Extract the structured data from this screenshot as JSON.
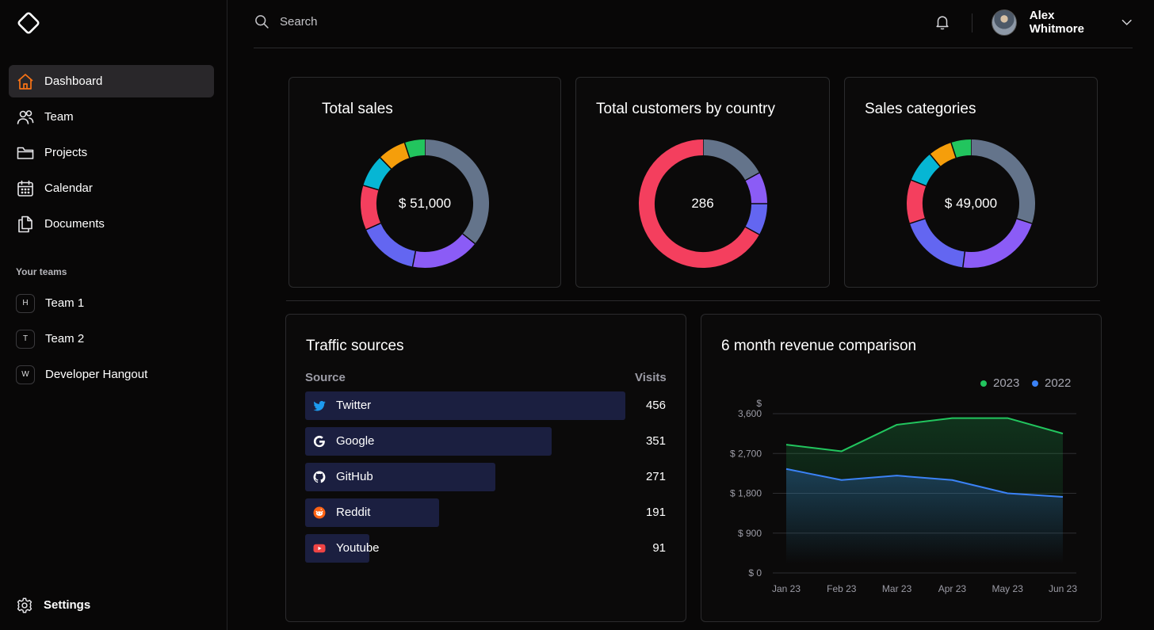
{
  "sidebar": {
    "nav": [
      {
        "label": "Dashboard",
        "icon": "home-icon",
        "active": true
      },
      {
        "label": "Team",
        "icon": "users-icon"
      },
      {
        "label": "Projects",
        "icon": "folder-icon"
      },
      {
        "label": "Calendar",
        "icon": "calendar-icon"
      },
      {
        "label": "Documents",
        "icon": "documents-icon"
      }
    ],
    "teams_heading": "Your teams",
    "teams": [
      {
        "initial": "H",
        "label": "Team 1"
      },
      {
        "initial": "T",
        "label": "Team 2"
      },
      {
        "initial": "W",
        "label": "Developer Hangout"
      }
    ],
    "settings_label": "Settings"
  },
  "header": {
    "search_placeholder": "Search",
    "user_name": "Alex Whitmore"
  },
  "colors": {
    "accent": "#f97316",
    "slate": "#64748b",
    "violet": "#8b5cf6",
    "indigo": "#6366f1",
    "rose": "#f43f5e",
    "cyan": "#06b6d4",
    "amber": "#f59e0b",
    "green": "#22c55e",
    "blue": "#3b82f6",
    "bar": "#1b1f40"
  },
  "cards": {
    "total_sales": {
      "title": "Total sales",
      "center": "$ 51,000",
      "slices": [
        {
          "value": 35,
          "color": "#64748b"
        },
        {
          "value": 17,
          "color": "#8b5cf6"
        },
        {
          "value": 15,
          "color": "#6366f1"
        },
        {
          "value": 11,
          "color": "#f43f5e"
        },
        {
          "value": 8,
          "color": "#06b6d4"
        },
        {
          "value": 7,
          "color": "#f59e0b"
        },
        {
          "value": 5,
          "color": "#22c55e"
        }
      ]
    },
    "customers_by_country": {
      "title": "Total customers by country",
      "center": "286",
      "slices": [
        {
          "value": 17,
          "color": "#64748b"
        },
        {
          "value": 8,
          "color": "#8b5cf6"
        },
        {
          "value": 8,
          "color": "#6366f1"
        },
        {
          "value": 67,
          "color": "#f43f5e"
        }
      ]
    },
    "sales_categories": {
      "title": "Sales categories",
      "center": "$ 49,000",
      "slices": [
        {
          "value": 30,
          "color": "#64748b"
        },
        {
          "value": 22,
          "color": "#8b5cf6"
        },
        {
          "value": 18,
          "color": "#6366f1"
        },
        {
          "value": 11,
          "color": "#f43f5e"
        },
        {
          "value": 8,
          "color": "#06b6d4"
        },
        {
          "value": 6,
          "color": "#f59e0b"
        },
        {
          "value": 5,
          "color": "#22c55e"
        }
      ]
    }
  },
  "traffic": {
    "title": "Traffic sources",
    "col_source": "Source",
    "col_visits": "Visits",
    "rows": [
      {
        "source": "Twitter",
        "visits": 456,
        "icon": "twitter-icon"
      },
      {
        "source": "Google",
        "visits": 351,
        "icon": "google-icon"
      },
      {
        "source": "GitHub",
        "visits": 271,
        "icon": "github-icon"
      },
      {
        "source": "Reddit",
        "visits": 191,
        "icon": "reddit-icon"
      },
      {
        "source": "Youtube",
        "visits": 91,
        "icon": "youtube-icon"
      }
    ]
  },
  "revenue": {
    "title": "6 month revenue comparison",
    "legend": [
      {
        "label": "2023",
        "color": "#22c55e"
      },
      {
        "label": "2022",
        "color": "#3b82f6"
      }
    ]
  },
  "chart_data": {
    "type": "area",
    "title": "6 month revenue comparison",
    "x": [
      "Jan 23",
      "Feb 23",
      "Mar 23",
      "Apr 23",
      "May 23",
      "Jun 23"
    ],
    "series": [
      {
        "name": "2023",
        "values": [
          2900,
          2750,
          3350,
          3500,
          3500,
          3150
        ],
        "color": "#22c55e"
      },
      {
        "name": "2022",
        "values": [
          2350,
          2100,
          2200,
          2100,
          1800,
          1720
        ],
        "color": "#3b82f6"
      }
    ],
    "yticks": [
      "$ 0",
      "$ 900",
      "$ 1,800",
      "$ 2,700",
      "3,600"
    ],
    "ytick_prefix_top": "$",
    "ylim": [
      0,
      3600
    ],
    "grid": true,
    "legend_position": "top-right"
  }
}
